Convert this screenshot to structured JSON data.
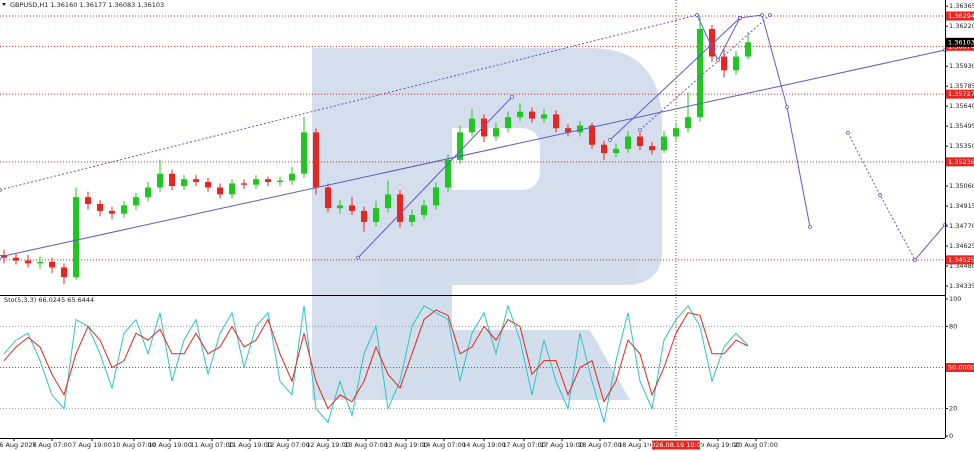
{
  "chart_data": {
    "type": "candlestick",
    "header": "GBPUSD,H1  1.36160 1.36177 1.36083 1.36103",
    "up_color": "#1fc81f",
    "down_color": "#e8261f",
    "xlim": [
      0,
      236.25
    ],
    "ylim": [
      1.3427,
      1.3641
    ],
    "xticks": [
      {
        "value": 3.5,
        "label": "6 Aug 2026"
      },
      {
        "value": 13,
        "label": "7 Aug 07:00"
      },
      {
        "value": 23,
        "label": "7 Aug 19:00"
      },
      {
        "value": 33.5,
        "label": "10 Aug 07:00"
      },
      {
        "value": 42.5,
        "label": "10 Aug 19:00"
      },
      {
        "value": 53,
        "label": "11 Aug 07:00"
      },
      {
        "value": 62.5,
        "label": "11 Aug 19:00"
      },
      {
        "value": 72,
        "label": "12 Aug 07:00"
      },
      {
        "value": 82,
        "label": "12 Aug 19:00"
      },
      {
        "value": 91.5,
        "label": "13 Aug 07:00"
      },
      {
        "value": 101.5,
        "label": "13 Aug 19:00"
      },
      {
        "value": 111,
        "label": "14 Aug 07:00"
      },
      {
        "value": 121,
        "label": "14 Aug 19:00"
      },
      {
        "value": 131,
        "label": "17 Aug 07:00"
      },
      {
        "value": 140.5,
        "label": "17 Aug 19:00"
      },
      {
        "value": 150,
        "label": "18 Aug 07:00"
      },
      {
        "value": 160,
        "label": "18 Aug 19:00"
      },
      {
        "value": 179.5,
        "label": "19 Aug 19:00"
      },
      {
        "value": 189,
        "label": "20 Aug 07:00"
      }
    ],
    "yticks": [
      1.36365,
      {
        "value": 1.3622,
        "label": "1.36220"
      },
      {
        "value": 1.3593,
        "label": "1.35930"
      },
      1.35785,
      {
        "value": 1.3564,
        "label": "1.35640"
      },
      1.35495,
      {
        "value": 1.3535,
        "label": "1.35350"
      },
      {
        "value": 1.3506,
        "label": "1.35060"
      },
      1.34915,
      {
        "value": 1.3477,
        "label": "1.34770"
      },
      1.34625,
      {
        "value": 1.3448,
        "label": "1.34480"
      },
      1.34335
    ],
    "levels": [
      1.36294,
      1.36074,
      1.35727,
      1.35236,
      1.34525
    ],
    "level_color": "#e8261f",
    "last_price": 1.36103,
    "crosshair": {
      "value": 169,
      "label": "2026.08.19 10:00"
    },
    "candles": {
      "x": [
        1,
        4,
        7,
        10,
        13,
        16,
        19,
        22,
        25,
        28,
        31,
        34,
        37,
        40,
        43,
        46,
        49,
        52,
        55,
        58,
        61,
        64,
        67,
        70,
        73,
        76,
        79,
        82,
        85,
        88,
        91,
        94,
        97,
        100,
        103,
        106,
        109,
        112,
        115,
        118,
        121,
        124,
        127,
        130,
        133,
        136,
        139,
        142,
        145,
        148,
        151,
        154,
        157,
        160,
        163,
        166,
        169,
        172,
        175,
        178,
        181,
        184,
        187
      ],
      "open": [
        1.3456,
        1.3454,
        1.3452,
        1.345,
        1.3451,
        1.3447,
        1.344,
        1.3498,
        1.3493,
        1.3488,
        1.3486,
        1.3492,
        1.3498,
        1.3505,
        1.3515,
        1.3506,
        1.3511,
        1.3509,
        1.3505,
        1.35,
        1.3508,
        1.3507,
        1.3511,
        1.3509,
        1.351,
        1.3515,
        1.3545,
        1.3505,
        1.349,
        1.3492,
        1.3488,
        1.348,
        1.349,
        1.35,
        1.348,
        1.3485,
        1.3492,
        1.3505,
        1.3525,
        1.3545,
        1.3555,
        1.3542,
        1.3548,
        1.3556,
        1.356,
        1.3555,
        1.3558,
        1.3548,
        1.3545,
        1.355,
        1.3536,
        1.353,
        1.3533,
        1.3542,
        1.3535,
        1.3532,
        1.3542,
        1.3548,
        1.3556,
        1.362,
        1.36,
        1.359,
        1.36
      ],
      "high": [
        1.346,
        1.3457,
        1.3456,
        1.3455,
        1.3454,
        1.345,
        1.3505,
        1.3502,
        1.3496,
        1.3491,
        1.3495,
        1.3501,
        1.3509,
        1.3525,
        1.3518,
        1.3514,
        1.3514,
        1.3512,
        1.3508,
        1.3511,
        1.3511,
        1.3514,
        1.3513,
        1.3513,
        1.352,
        1.3556,
        1.3548,
        1.3508,
        1.3496,
        1.3498,
        1.3491,
        1.3495,
        1.351,
        1.3503,
        1.3489,
        1.3496,
        1.3509,
        1.3529,
        1.355,
        1.3562,
        1.3558,
        1.3552,
        1.356,
        1.3566,
        1.3563,
        1.3562,
        1.3561,
        1.3551,
        1.3553,
        1.3552,
        1.3539,
        1.3537,
        1.3546,
        1.3545,
        1.3538,
        1.3546,
        1.3552,
        1.3574,
        1.36294,
        1.3623,
        1.3605,
        1.3604,
        1.36177
      ],
      "low": [
        1.345,
        1.3449,
        1.3447,
        1.3446,
        1.3443,
        1.3435,
        1.3438,
        1.3489,
        1.3484,
        1.3482,
        1.3483,
        1.3489,
        1.3495,
        1.3502,
        1.3503,
        1.3503,
        1.3506,
        1.3502,
        1.3497,
        1.3497,
        1.3504,
        1.3504,
        1.3506,
        1.3506,
        1.3507,
        1.3512,
        1.35,
        1.3487,
        1.3486,
        1.3485,
        1.3473,
        1.3477,
        1.3487,
        1.3476,
        1.3477,
        1.3482,
        1.3489,
        1.3502,
        1.3522,
        1.3542,
        1.3538,
        1.3539,
        1.3545,
        1.3553,
        1.3552,
        1.3552,
        1.3545,
        1.3542,
        1.3542,
        1.3533,
        1.3525,
        1.3527,
        1.353,
        1.3532,
        1.3529,
        1.353,
        1.3539,
        1.3545,
        1.3553,
        1.3596,
        1.3585,
        1.3587,
        1.3598
      ],
      "close": [
        1.3454,
        1.3452,
        1.345,
        1.3451,
        1.3447,
        1.344,
        1.3498,
        1.3493,
        1.3488,
        1.3486,
        1.3492,
        1.3498,
        1.3505,
        1.3515,
        1.3506,
        1.3511,
        1.3509,
        1.3505,
        1.35,
        1.3508,
        1.3507,
        1.3511,
        1.3509,
        1.351,
        1.3515,
        1.3545,
        1.3505,
        1.349,
        1.3492,
        1.3488,
        1.348,
        1.349,
        1.35,
        1.348,
        1.3485,
        1.3492,
        1.3505,
        1.3525,
        1.3545,
        1.3555,
        1.3542,
        1.3548,
        1.3556,
        1.356,
        1.3555,
        1.3558,
        1.3548,
        1.3545,
        1.355,
        1.3536,
        1.353,
        1.3533,
        1.3542,
        1.3535,
        1.3532,
        1.3542,
        1.3548,
        1.3556,
        1.362,
        1.36,
        1.359,
        1.36,
        1.36103
      ]
    },
    "drawing_color": "#5b5bd6",
    "drawings": [
      {
        "x": [
          0,
          236.25
        ],
        "y": [
          1.34547,
          1.36047
        ],
        "dashed": false
      },
      {
        "x": [
          0,
          174.25
        ],
        "y": [
          1.35032,
          1.36301
        ],
        "dashed": true
      },
      {
        "x": [
          89.5,
          128
        ],
        "y": [
          1.3454,
          1.35707
        ],
        "dashed": false
      },
      {
        "x": [
          152.5,
          185
        ],
        "y": [
          1.35395,
          1.3628
        ],
        "dashed": false
      },
      {
        "x": [
          160,
          192.5
        ],
        "y": [
          1.35468,
          1.36301
        ],
        "dashed": true
      },
      {
        "x": [
          174.25,
          179.5,
          185,
          190.5,
          196.75,
          202.5
        ],
        "y": [
          1.36301,
          1.35975,
          1.3628,
          1.36301,
          1.35634,
          1.34764
        ],
        "dashed": false
      },
      {
        "x": [
          212,
          220,
          228.75
        ],
        "y": [
          1.35446,
          1.34996,
          1.34525
        ],
        "dashed": true
      },
      {
        "x": [
          228.75,
          236.25
        ],
        "y": [
          1.34525,
          1.34779
        ],
        "dashed": false
      }
    ],
    "stochastic": {
      "type": "line",
      "header": "Sto(5,3,3) 66.0245 65.6444",
      "ylim": [
        0,
        100
      ],
      "yticks": [
        0,
        20,
        80,
        100
      ],
      "levels": [
        20,
        80
      ],
      "mid_level": {
        "value": 50,
        "label": "50.0000"
      },
      "series": [
        {
          "color": "#2fc4c4",
          "values": [
            60,
            70,
            75,
            55,
            30,
            20,
            85,
            80,
            60,
            35,
            75,
            85,
            60,
            90,
            40,
            70,
            85,
            45,
            75,
            90,
            50,
            80,
            90,
            40,
            30,
            95,
            20,
            10,
            40,
            15,
            60,
            80,
            20,
            40,
            80,
            95,
            90,
            85,
            40,
            75,
            90,
            60,
            95,
            70,
            30,
            70,
            40,
            20,
            75,
            40,
            10,
            55,
            90,
            40,
            20,
            70,
            85,
            95,
            80,
            40,
            65,
            75,
            66.0245
          ]
        },
        {
          "color": "#e8261f",
          "values": [
            55,
            65,
            72,
            65,
            45,
            30,
            60,
            80,
            70,
            50,
            55,
            75,
            70,
            78,
            60,
            60,
            75,
            60,
            65,
            80,
            65,
            70,
            85,
            60,
            40,
            75,
            40,
            20,
            30,
            25,
            40,
            65,
            45,
            35,
            60,
            85,
            92,
            88,
            60,
            65,
            80,
            70,
            85,
            80,
            45,
            55,
            55,
            30,
            50,
            55,
            25,
            40,
            70,
            60,
            30,
            50,
            75,
            90,
            88,
            60,
            60,
            70,
            65.6444
          ]
        }
      ]
    }
  }
}
